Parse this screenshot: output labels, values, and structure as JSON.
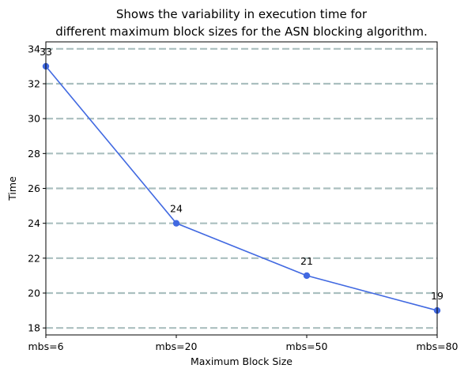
{
  "chart_data": {
    "type": "line",
    "title": "Shows the variability in execution time for\ndifferent maximum block sizes for the ASN blocking algorithm.",
    "xlabel": "Maximum Block Size",
    "ylabel": "Time",
    "categories": [
      "mbs=6",
      "mbs=20",
      "mbs=50",
      "mbs=80"
    ],
    "series": [
      {
        "values": [
          33,
          24,
          21,
          19
        ],
        "color": "#4169e1"
      }
    ],
    "data_labels": [
      "33",
      "24",
      "21",
      "19"
    ],
    "ylim": [
      17.6,
      34.4
    ],
    "yticks": [
      18,
      20,
      22,
      24,
      26,
      28,
      30,
      32,
      34
    ],
    "grid": {
      "axis": "y",
      "style": "dashed",
      "color": "#aabfbf"
    },
    "legend": "none"
  }
}
